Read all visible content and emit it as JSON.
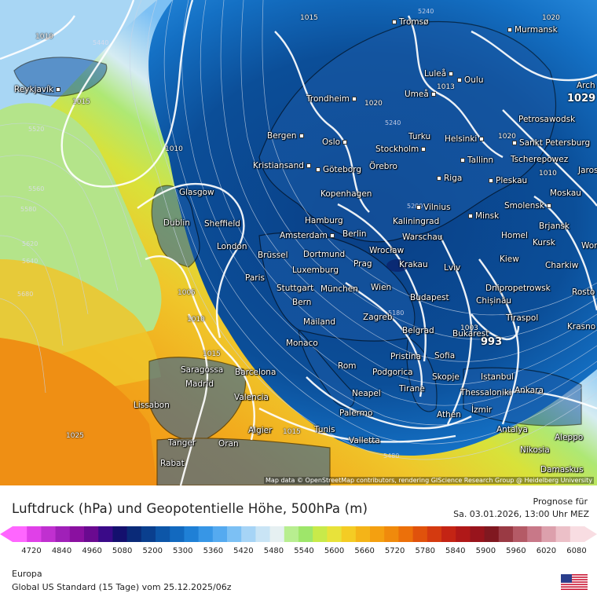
{
  "map": {
    "attribution": "Map data © OpenStreetMap contributors, rendering GIScience Research Group @ Heidelberg University",
    "cities": [
      {
        "name": "Tromsø"
      },
      {
        "name": "Murmansk"
      },
      {
        "name": "Luleå"
      },
      {
        "name": "Oulu"
      },
      {
        "name": "Umeå"
      },
      {
        "name": "Reykjavík"
      },
      {
        "name": "Trondheim"
      },
      {
        "name": "Petrosawodsk"
      },
      {
        "name": "Bergen"
      },
      {
        "name": "Oslo"
      },
      {
        "name": "Turku"
      },
      {
        "name": "Helsinki"
      },
      {
        "name": "Sankt Petersburg"
      },
      {
        "name": "Stockholm"
      },
      {
        "name": "Kristiansand"
      },
      {
        "name": "Göteborg"
      },
      {
        "name": "Örebro"
      },
      {
        "name": "Tallinn"
      },
      {
        "name": "Tscherepowez"
      },
      {
        "name": "Jaros"
      },
      {
        "name": "Riga"
      },
      {
        "name": "Pleskau"
      },
      {
        "name": "Glasgow"
      },
      {
        "name": "Kopenhagen"
      },
      {
        "name": "Moskau"
      },
      {
        "name": "Vilnius"
      },
      {
        "name": "Smolensk"
      },
      {
        "name": "Dublin"
      },
      {
        "name": "Sheffield"
      },
      {
        "name": "Hamburg"
      },
      {
        "name": "Minsk"
      },
      {
        "name": "Kaliningrad"
      },
      {
        "name": "Brjansk"
      },
      {
        "name": "Amsterdam"
      },
      {
        "name": "Berlin"
      },
      {
        "name": "Warschau"
      },
      {
        "name": "Homel"
      },
      {
        "name": "London"
      },
      {
        "name": "Kursk"
      },
      {
        "name": "Worone"
      },
      {
        "name": "Brüssel"
      },
      {
        "name": "Dortmund"
      },
      {
        "name": "Wrocław"
      },
      {
        "name": "Kiew"
      },
      {
        "name": "Prag"
      },
      {
        "name": "Krakau"
      },
      {
        "name": "Charkiw"
      },
      {
        "name": "Paris"
      },
      {
        "name": "Luxemburg"
      },
      {
        "name": "Lviv"
      },
      {
        "name": "Stuttgart"
      },
      {
        "name": "München"
      },
      {
        "name": "Wien"
      },
      {
        "name": "Dnipropetrowsk"
      },
      {
        "name": "Rosto"
      },
      {
        "name": "Bern"
      },
      {
        "name": "Budapest"
      },
      {
        "name": "Chișinău"
      },
      {
        "name": "Tiraspol"
      },
      {
        "name": "Mailand"
      },
      {
        "name": "Zagreb"
      },
      {
        "name": "Krasno"
      },
      {
        "name": "Belgrad"
      },
      {
        "name": "Bukarest"
      },
      {
        "name": "Monaco"
      },
      {
        "name": "Pristina"
      },
      {
        "name": "Sofia"
      },
      {
        "name": "Rom"
      },
      {
        "name": "Saragossa"
      },
      {
        "name": "Barcelona"
      },
      {
        "name": "Podgorica"
      },
      {
        "name": "Istanbul"
      },
      {
        "name": "Madrid"
      },
      {
        "name": "Skopje"
      },
      {
        "name": "Neapel"
      },
      {
        "name": "Tirane"
      },
      {
        "name": "Thessaloniki"
      },
      {
        "name": "Ankara"
      },
      {
        "name": "Valencia"
      },
      {
        "name": "Lissabon"
      },
      {
        "name": "Palermo"
      },
      {
        "name": "İzmir"
      },
      {
        "name": "Athen"
      },
      {
        "name": "Algier"
      },
      {
        "name": "Tunis"
      },
      {
        "name": "Antalya"
      },
      {
        "name": "Aleppo"
      },
      {
        "name": "Tanger"
      },
      {
        "name": "Oran"
      },
      {
        "name": "Valletta"
      },
      {
        "name": "Nikosia"
      },
      {
        "name": "Rabat"
      },
      {
        "name": "Damaskus"
      },
      {
        "name": "Arch"
      }
    ],
    "pressure_labels": [
      "1010",
      "1015",
      "1020",
      "1029",
      "1010",
      "1005",
      "1010",
      "1015",
      "1025",
      "1015",
      "1013",
      "1003",
      "993",
      "1020",
      "1020",
      "1015",
      "1010"
    ],
    "height_labels": [
      "5240",
      "5440",
      "5520",
      "5560",
      "5580",
      "5620",
      "5640",
      "5680",
      "5200",
      "5180",
      "5480",
      "5240"
    ],
    "big_pressure": [
      "1029",
      "993"
    ]
  },
  "legend": {
    "title": "Luftdruck (hPa) und Geopotentielle Höhe, 500hPa (m)",
    "forecast_label": "Prognose für",
    "forecast_date": "Sa. 03.01.2026, 13:00 Uhr MEZ",
    "ticks": [
      "4720",
      "4840",
      "4960",
      "5080",
      "5200",
      "5300",
      "5360",
      "5420",
      "5480",
      "5540",
      "5600",
      "5660",
      "5720",
      "5780",
      "5840",
      "5900",
      "5960",
      "6020",
      "6080"
    ],
    "colors": [
      "#ff66ff",
      "#e040e8",
      "#c030d0",
      "#a020b8",
      "#8a10a0",
      "#6a0a90",
      "#3a0a88",
      "#14106e",
      "#0a2a78",
      "#0a3f8e",
      "#0d56a8",
      "#1269bf",
      "#1f80d6",
      "#3796e6",
      "#55aaf0",
      "#7cc0f4",
      "#a6d4f6",
      "#c9e4f5",
      "#e6f0f2",
      "#b8ee90",
      "#9ee66a",
      "#c8ea4a",
      "#e8e23a",
      "#f4cc24",
      "#f4b418",
      "#f4a010",
      "#f08a0c",
      "#ec700a",
      "#e0520c",
      "#d43a10",
      "#c42414",
      "#b01818",
      "#98141c",
      "#801820",
      "#9a3a44",
      "#b45a66",
      "#c87888",
      "#dca0ac",
      "#ecc0c8",
      "#f8dde2"
    ],
    "region": "Europa",
    "model": "Global US Standard (15 Tage) vom  25.12.2025/06z"
  }
}
